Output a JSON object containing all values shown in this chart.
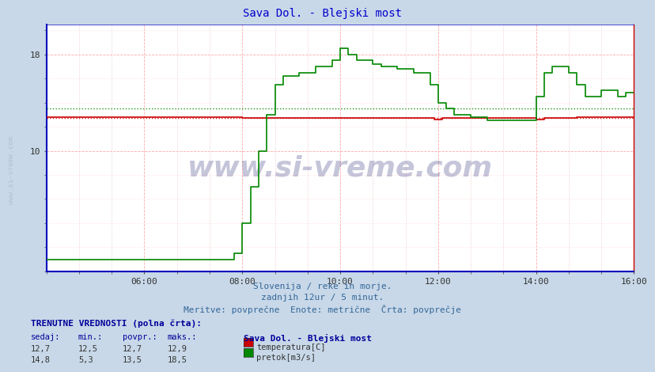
{
  "title": "Sava Dol. - Blejski most",
  "title_color": "#0000cc",
  "outer_bg_color": "#c8d8e8",
  "plot_bg_color": "#ffffff",
  "temp_color": "#cc0000",
  "flow_color": "#008800",
  "dotted_temp_color": "#cc0000",
  "dotted_flow_color": "#008800",
  "temp_avg": 12.7,
  "flow_avg": 13.5,
  "xlim": [
    0,
    144
  ],
  "ylim": [
    0,
    20.5
  ],
  "ytick_vals": [
    10,
    18
  ],
  "xtick_positions": [
    24,
    48,
    72,
    96,
    120,
    144
  ],
  "xtick_labels": [
    "06:00",
    "08:00",
    "10:00",
    "12:00",
    "14:00",
    "16:00"
  ],
  "watermark": "www.si-vreme.com",
  "subtitle1": "Slovenija / reke in morje.",
  "subtitle2": "zadnjih 12ur / 5 minut.",
  "subtitle3": "Meritve: povprečne  Enote: metrične  Črta: povprečje",
  "footer_title": "TRENUTNE VREDNOSTI (polna črta):",
  "col_headers": [
    "sedaj:",
    "min.:",
    "povpr.:",
    "maks.:"
  ],
  "row1_vals": [
    "12,7",
    "12,5",
    "12,7",
    "12,9"
  ],
  "row2_vals": [
    "14,8",
    "5,3",
    "13,5",
    "18,5"
  ],
  "legend_label1": "temperatura[C]",
  "legend_label2": "pretok[m3/s]",
  "station_label": "Sava Dol. - Blejski most",
  "left_label": "www.si-vreme.com"
}
